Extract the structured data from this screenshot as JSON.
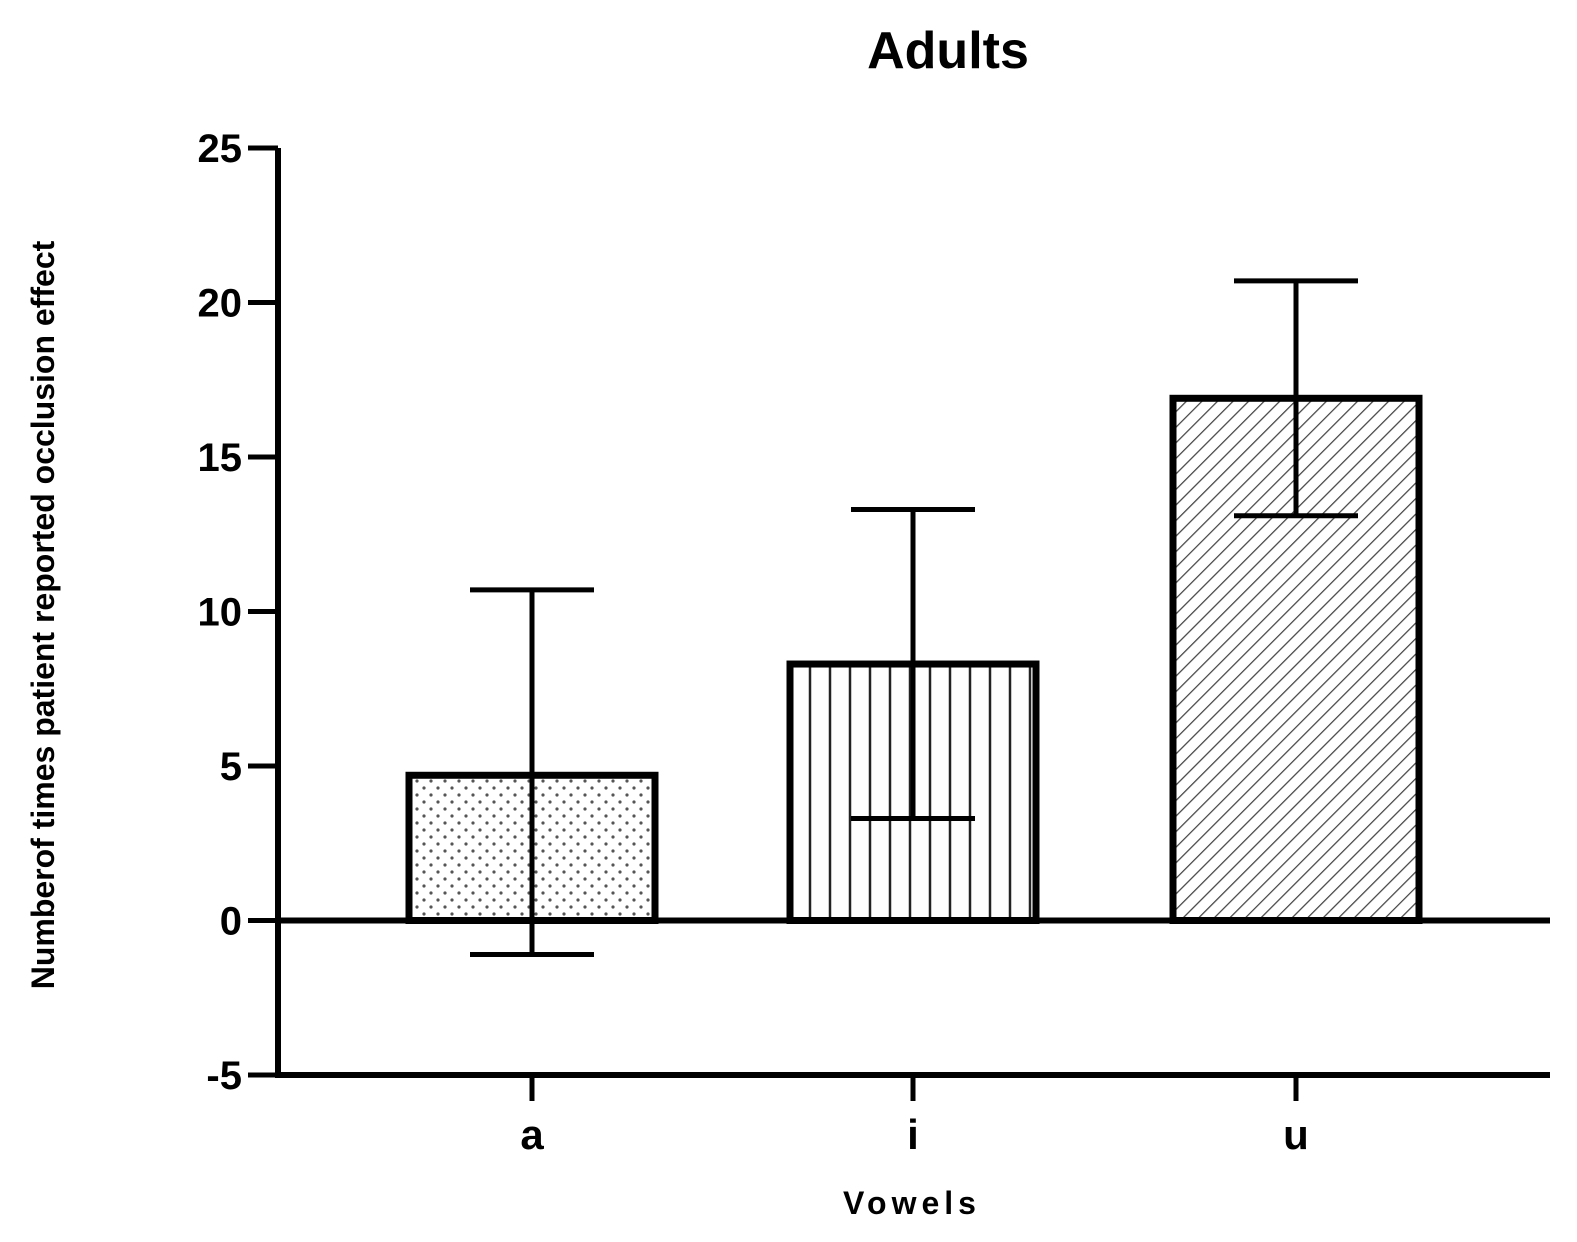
{
  "chart_data": {
    "type": "bar",
    "title": "Adults",
    "xlabel": "Vowels",
    "ylabel": "Numberof times patient reported occlusion effect",
    "categories": [
      "a",
      "i",
      "u"
    ],
    "values": [
      4.7,
      8.3,
      16.9
    ],
    "error_bars": {
      "upper": [
        10.7,
        13.3,
        20.7
      ],
      "lower": [
        -1.1,
        3.3,
        13.1
      ]
    },
    "patterns": [
      "dots",
      "vertical-lines",
      "diagonal-lines"
    ],
    "ylim": [
      -5,
      25
    ],
    "yticks": [
      -5,
      0,
      5,
      10,
      15,
      20,
      25
    ],
    "ytick_labels": [
      "-5",
      "0",
      "5",
      "10",
      "15",
      "20",
      "25"
    ],
    "grid": false,
    "colors": {
      "stroke": "#000000",
      "background": "#ffffff",
      "hatch": "#555555"
    }
  }
}
